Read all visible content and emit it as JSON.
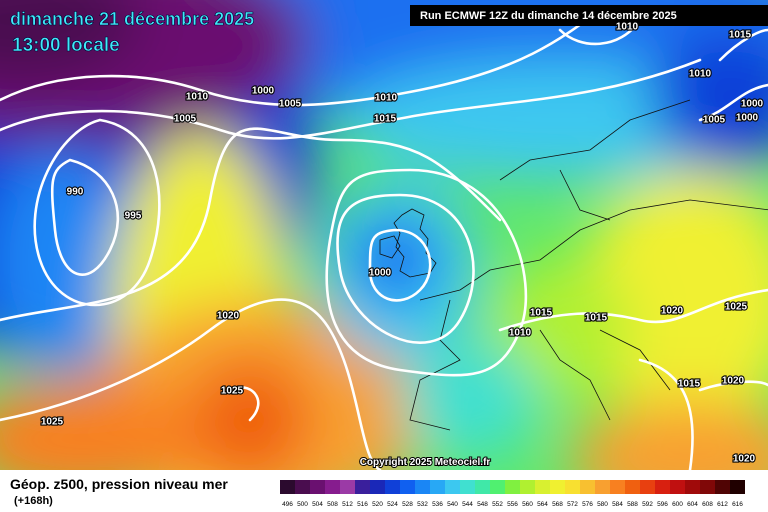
{
  "header": {
    "date": "dimanche 21 décembre 2025",
    "time": "13:00 locale",
    "run": "Run ECMWF 12Z du dimanche 14 décembre 2025"
  },
  "isobar_labels": [
    "1010",
    "1015",
    "1010",
    "1000",
    "1000",
    "1005",
    "1010",
    "1000",
    "1005",
    "1010",
    "1015",
    "1005",
    "990",
    "995",
    "1000",
    "1020",
    "1015",
    "1015",
    "1010",
    "1020",
    "1025",
    "1025",
    "1015",
    "1020",
    "1025",
    "1020"
  ],
  "copyright": "Copyright 2025 Meteociel.fr",
  "legend": {
    "title": "Géop. z500, pression niveau mer",
    "lead": "(+168h)",
    "scale": [
      {
        "label": "496",
        "color": "#2b0a2e"
      },
      {
        "label": "500",
        "color": "#4a0d4f"
      },
      {
        "label": "504",
        "color": "#6a1070"
      },
      {
        "label": "508",
        "color": "#861c8e"
      },
      {
        "label": "512",
        "color": "#9b3aa6"
      },
      {
        "label": "516",
        "color": "#3a1f9c"
      },
      {
        "label": "520",
        "color": "#1a28b8"
      },
      {
        "label": "524",
        "color": "#1040d8"
      },
      {
        "label": "528",
        "color": "#1060f0"
      },
      {
        "label": "532",
        "color": "#1a86f5"
      },
      {
        "label": "536",
        "color": "#28a8f5"
      },
      {
        "label": "540",
        "color": "#3cc8f0"
      },
      {
        "label": "544",
        "color": "#40e0d0"
      },
      {
        "label": "548",
        "color": "#40e8a8"
      },
      {
        "label": "552",
        "color": "#50f070"
      },
      {
        "label": "556",
        "color": "#80f040"
      },
      {
        "label": "560",
        "color": "#b0f030"
      },
      {
        "label": "564",
        "color": "#d8f030"
      },
      {
        "label": "568",
        "color": "#f0f030"
      },
      {
        "label": "572",
        "color": "#f8e030"
      },
      {
        "label": "576",
        "color": "#f8c030"
      },
      {
        "label": "580",
        "color": "#f8a030"
      },
      {
        "label": "584",
        "color": "#f88020"
      },
      {
        "label": "588",
        "color": "#f06010"
      },
      {
        "label": "592",
        "color": "#e84010"
      },
      {
        "label": "596",
        "color": "#d82010"
      },
      {
        "label": "600",
        "color": "#c01010"
      },
      {
        "label": "604",
        "color": "#a00a0a"
      },
      {
        "label": "608",
        "color": "#800808"
      },
      {
        "label": "612",
        "color": "#500404"
      },
      {
        "label": "616",
        "color": "#200000"
      }
    ]
  }
}
